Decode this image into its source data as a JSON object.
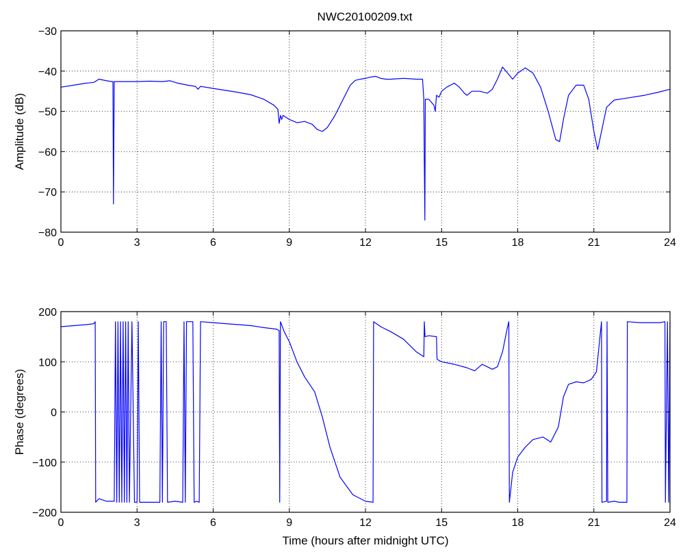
{
  "figure_title": "NWC20100209.txt",
  "colors": {
    "series": "#0000ff",
    "axes": "#000000",
    "grid": "#000000",
    "background": "#ffffff"
  },
  "chart_data": [
    {
      "type": "line",
      "title": "NWC20100209.txt",
      "xlabel": "",
      "ylabel": "Amplitude (dB)",
      "xlim": [
        0,
        24
      ],
      "ylim": [
        -80,
        -30
      ],
      "xticks": [
        0,
        3,
        6,
        9,
        12,
        15,
        18,
        21,
        24
      ],
      "yticks": [
        -80,
        -70,
        -60,
        -50,
        -40,
        -30
      ],
      "xtick_labels": [
        "0",
        "3",
        "6",
        "9",
        "12",
        "15",
        "18",
        "21",
        "24"
      ],
      "ytick_labels": [
        "−80",
        "−70",
        "−60",
        "−50",
        "−40",
        "−30"
      ],
      "grid": true,
      "series": [
        {
          "color": "#0000ff",
          "points": [
            [
              0,
              -44
            ],
            [
              0.5,
              -43.5
            ],
            [
              1.0,
              -43
            ],
            [
              1.3,
              -42.8
            ],
            [
              1.5,
              -42
            ],
            [
              1.8,
              -42.4
            ],
            [
              2.0,
              -42.6
            ],
            [
              2.05,
              -42.6
            ],
            [
              2.07,
              -73
            ],
            [
              2.1,
              -42.6
            ],
            [
              2.5,
              -42.6
            ],
            [
              3.0,
              -42.6
            ],
            [
              3.5,
              -42.5
            ],
            [
              4.0,
              -42.6
            ],
            [
              4.3,
              -42.4
            ],
            [
              4.6,
              -43
            ],
            [
              5.0,
              -43.5
            ],
            [
              5.3,
              -43.8
            ],
            [
              5.4,
              -44.5
            ],
            [
              5.5,
              -43.8
            ],
            [
              6.0,
              -44.3
            ],
            [
              6.5,
              -44.8
            ],
            [
              7.0,
              -45.3
            ],
            [
              7.5,
              -45.9
            ],
            [
              8.0,
              -47
            ],
            [
              8.4,
              -48.5
            ],
            [
              8.55,
              -49.5
            ],
            [
              8.6,
              -53
            ],
            [
              8.65,
              -51
            ],
            [
              8.7,
              -52
            ],
            [
              8.75,
              -51
            ],
            [
              9.0,
              -52
            ],
            [
              9.3,
              -52.8
            ],
            [
              9.6,
              -52.5
            ],
            [
              9.9,
              -53.2
            ],
            [
              10.1,
              -54.5
            ],
            [
              10.3,
              -55
            ],
            [
              10.5,
              -54
            ],
            [
              10.8,
              -51
            ],
            [
              11.0,
              -48.5
            ],
            [
              11.2,
              -46
            ],
            [
              11.4,
              -43.5
            ],
            [
              11.6,
              -42.3
            ],
            [
              11.8,
              -42
            ],
            [
              12.0,
              -41.8
            ],
            [
              12.2,
              -41.5
            ],
            [
              12.4,
              -41.3
            ],
            [
              12.6,
              -41.8
            ],
            [
              12.8,
              -42
            ],
            [
              13.0,
              -42
            ],
            [
              13.5,
              -41.8
            ],
            [
              14.0,
              -42
            ],
            [
              14.25,
              -42
            ],
            [
              14.3,
              -47
            ],
            [
              14.32,
              -63
            ],
            [
              14.34,
              -77
            ],
            [
              14.36,
              -47
            ],
            [
              14.5,
              -47
            ],
            [
              14.7,
              -48.5
            ],
            [
              14.75,
              -50
            ],
            [
              14.8,
              -46
            ],
            [
              14.9,
              -46.5
            ],
            [
              15.0,
              -45
            ],
            [
              15.2,
              -44
            ],
            [
              15.5,
              -43
            ],
            [
              15.7,
              -44
            ],
            [
              15.9,
              -45.5
            ],
            [
              16.0,
              -46
            ],
            [
              16.2,
              -45
            ],
            [
              16.5,
              -45
            ],
            [
              16.8,
              -45.5
            ],
            [
              17.0,
              -44.5
            ],
            [
              17.2,
              -42
            ],
            [
              17.4,
              -39
            ],
            [
              17.6,
              -40.5
            ],
            [
              17.8,
              -42
            ],
            [
              18.0,
              -40.5
            ],
            [
              18.3,
              -39.2
            ],
            [
              18.6,
              -40.5
            ],
            [
              18.9,
              -44
            ],
            [
              19.2,
              -50
            ],
            [
              19.5,
              -57
            ],
            [
              19.65,
              -57.5
            ],
            [
              19.8,
              -52
            ],
            [
              20.0,
              -46
            ],
            [
              20.3,
              -43.5
            ],
            [
              20.6,
              -43.5
            ],
            [
              20.8,
              -47
            ],
            [
              21.0,
              -55
            ],
            [
              21.15,
              -59.5
            ],
            [
              21.3,
              -55
            ],
            [
              21.5,
              -49
            ],
            [
              21.8,
              -47.2
            ],
            [
              22.2,
              -46.8
            ],
            [
              23.0,
              -46
            ],
            [
              23.5,
              -45.3
            ],
            [
              24.0,
              -44.5
            ]
          ]
        }
      ]
    },
    {
      "type": "line",
      "title": "",
      "xlabel": "Time (hours after midnight UTC)",
      "ylabel": "Phase (degrees)",
      "xlim": [
        0,
        24
      ],
      "ylim": [
        -200,
        200
      ],
      "xticks": [
        0,
        3,
        6,
        9,
        12,
        15,
        18,
        21,
        24
      ],
      "yticks": [
        -200,
        -100,
        0,
        100,
        200
      ],
      "xtick_labels": [
        "0",
        "3",
        "6",
        "9",
        "12",
        "15",
        "18",
        "21",
        "24"
      ],
      "ytick_labels": [
        "−200",
        "−100",
        "0",
        "100",
        "200"
      ],
      "grid": true,
      "series": [
        {
          "color": "#0000ff",
          "points": [
            [
              0,
              170
            ],
            [
              0.5,
              172
            ],
            [
              1.0,
              174
            ],
            [
              1.3,
              176
            ],
            [
              1.35,
              180
            ],
            [
              1.37,
              -180
            ],
            [
              1.5,
              -173
            ],
            [
              1.8,
              -178
            ],
            [
              2.1,
              -178
            ],
            [
              2.15,
              180
            ],
            [
              2.2,
              -180
            ],
            [
              2.25,
              180
            ],
            [
              2.3,
              -180
            ],
            [
              2.35,
              180
            ],
            [
              2.4,
              -180
            ],
            [
              2.45,
              180
            ],
            [
              2.5,
              -180
            ],
            [
              2.55,
              180
            ],
            [
              2.6,
              -180
            ],
            [
              2.65,
              180
            ],
            [
              2.7,
              -180
            ],
            [
              2.8,
              180
            ],
            [
              2.9,
              -180
            ],
            [
              3.0,
              -180
            ],
            [
              3.05,
              180
            ],
            [
              3.1,
              -180
            ],
            [
              3.2,
              -180
            ],
            [
              3.5,
              -180
            ],
            [
              3.9,
              -180
            ],
            [
              3.95,
              180
            ],
            [
              4.0,
              -180
            ],
            [
              4.05,
              180
            ],
            [
              4.15,
              180
            ],
            [
              4.2,
              -180
            ],
            [
              4.5,
              -178
            ],
            [
              4.8,
              -180
            ],
            [
              4.85,
              180
            ],
            [
              4.9,
              -180
            ],
            [
              4.95,
              180
            ],
            [
              5.2,
              180
            ],
            [
              5.25,
              -180
            ],
            [
              5.35,
              -178
            ],
            [
              5.45,
              -180
            ],
            [
              5.5,
              180
            ],
            [
              6.0,
              178
            ],
            [
              6.5,
              176
            ],
            [
              7.0,
              174
            ],
            [
              7.5,
              172
            ],
            [
              8.0,
              168
            ],
            [
              8.5,
              165
            ],
            [
              8.6,
              162
            ],
            [
              8.62,
              -180
            ],
            [
              8.65,
              180
            ],
            [
              8.8,
              160
            ],
            [
              9.0,
              140
            ],
            [
              9.3,
              100
            ],
            [
              9.6,
              70
            ],
            [
              10.0,
              40
            ],
            [
              10.3,
              -10
            ],
            [
              10.6,
              -70
            ],
            [
              11.0,
              -130
            ],
            [
              11.5,
              -165
            ],
            [
              12.0,
              -178
            ],
            [
              12.3,
              -180
            ],
            [
              12.32,
              180
            ],
            [
              12.6,
              170
            ],
            [
              13.0,
              160
            ],
            [
              13.5,
              145
            ],
            [
              14.0,
              120
            ],
            [
              14.3,
              110
            ],
            [
              14.32,
              180
            ],
            [
              14.35,
              150
            ],
            [
              14.5,
              152
            ],
            [
              14.8,
              150
            ],
            [
              14.82,
              105
            ],
            [
              15.0,
              100
            ],
            [
              15.5,
              95
            ],
            [
              16.0,
              88
            ],
            [
              16.3,
              82
            ],
            [
              16.6,
              95
            ],
            [
              17.0,
              85
            ],
            [
              17.2,
              90
            ],
            [
              17.4,
              120
            ],
            [
              17.6,
              170
            ],
            [
              17.65,
              180
            ],
            [
              17.67,
              -180
            ],
            [
              17.8,
              -120
            ],
            [
              18.0,
              -90
            ],
            [
              18.3,
              -70
            ],
            [
              18.6,
              -55
            ],
            [
              19.0,
              -50
            ],
            [
              19.3,
              -60
            ],
            [
              19.6,
              -30
            ],
            [
              19.8,
              30
            ],
            [
              20.0,
              55
            ],
            [
              20.3,
              60
            ],
            [
              20.6,
              58
            ],
            [
              20.9,
              65
            ],
            [
              21.1,
              80
            ],
            [
              21.3,
              180
            ],
            [
              21.32,
              -180
            ],
            [
              21.5,
              -178
            ],
            [
              21.52,
              180
            ],
            [
              21.55,
              -180
            ],
            [
              21.8,
              -178
            ],
            [
              22.0,
              -180
            ],
            [
              22.3,
              -180
            ],
            [
              22.32,
              180
            ],
            [
              22.8,
              178
            ],
            [
              23.2,
              178
            ],
            [
              23.6,
              178
            ],
            [
              23.8,
              180
            ],
            [
              23.82,
              -180
            ],
            [
              23.9,
              180
            ],
            [
              23.95,
              -180
            ],
            [
              24.0,
              180
            ]
          ]
        }
      ]
    }
  ]
}
